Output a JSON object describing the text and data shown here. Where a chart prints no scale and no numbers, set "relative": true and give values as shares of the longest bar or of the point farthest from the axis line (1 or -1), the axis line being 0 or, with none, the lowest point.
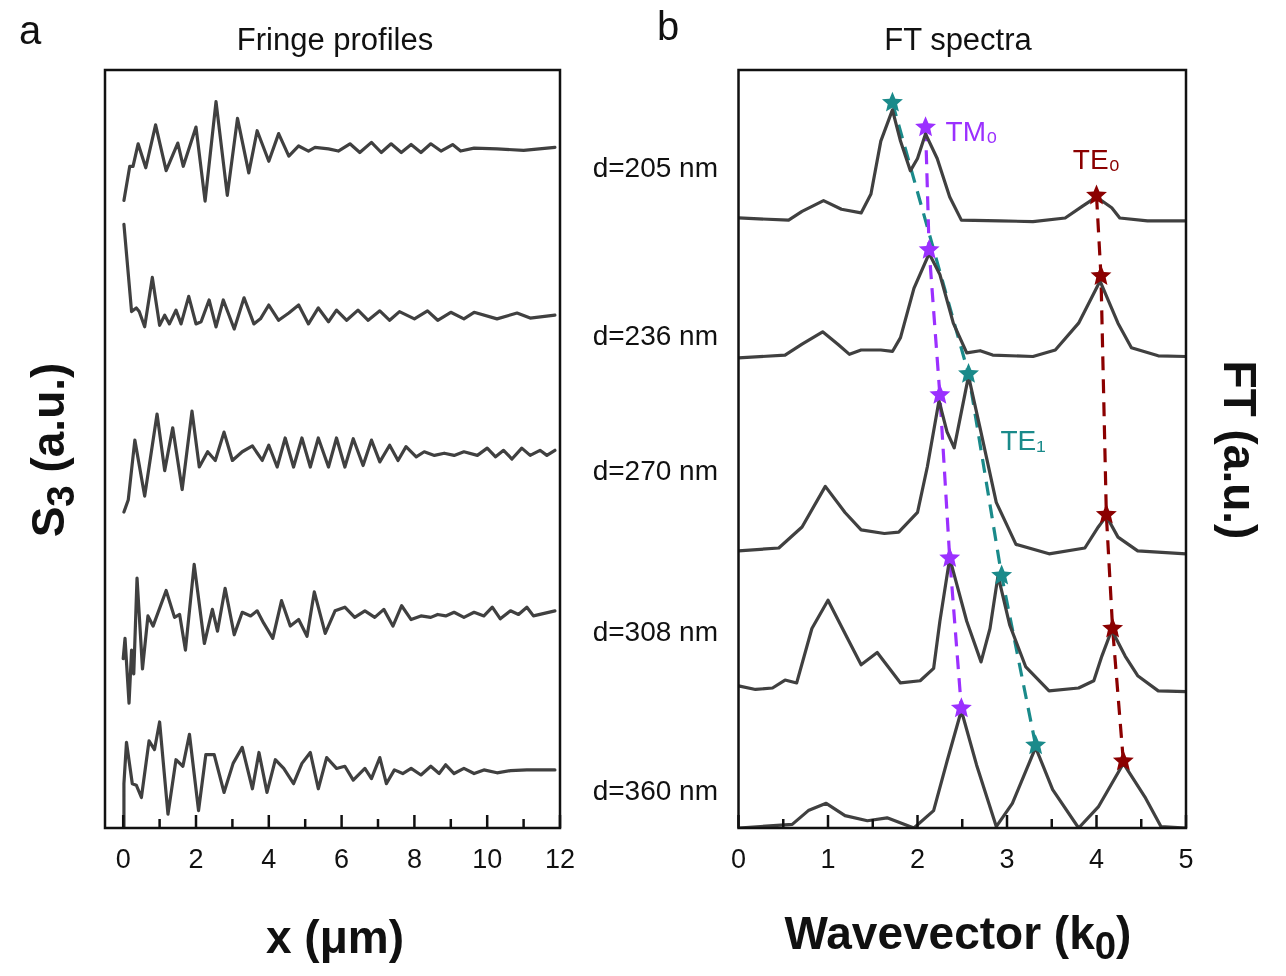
{
  "chart_data": [
    {
      "type": "line",
      "title": "Fringe profiles",
      "xlabel": "x (μm)",
      "ylabel": "S$_{3}$ (a.u.)",
      "annotations": [
        "a"
      ],
      "relative": true,
      "marker": "none",
      "line_style": "solid",
      "xlim": [
        -0.5,
        12
      ],
      "xticks": [
        0,
        {
          "value": 1,
          "label": null
        },
        2,
        {
          "value": 3,
          "label": null
        },
        4,
        {
          "value": 5,
          "label": null
        },
        6,
        {
          "value": 7,
          "label": null
        },
        8,
        {
          "value": 9,
          "label": null
        },
        10,
        {
          "value": 11,
          "label": null
        },
        12
      ],
      "series": [
        {
          "name": "d=205 nm",
          "color": "#404040",
          "x": [
            0.02,
            0.18,
            0.27,
            0.41,
            0.62,
            0.89,
            1.18,
            1.5,
            1.65,
            2.0,
            2.25,
            2.55,
            2.86,
            3.14,
            3.45,
            3.68,
            4.0,
            4.27,
            4.55,
            4.82,
            5.09,
            5.27,
            5.64,
            5.91,
            6.23,
            6.5,
            6.82,
            7.09,
            7.36,
            7.64,
            7.91,
            8.18,
            8.45,
            8.73,
            9.05,
            9.27,
            9.64,
            10.27,
            11.0,
            11.86
          ],
          "values": [
            0.864,
            0.911,
            0.911,
            0.942,
            0.909,
            0.968,
            0.905,
            0.943,
            0.911,
            0.965,
            0.863,
            1.0,
            0.871,
            0.977,
            0.902,
            0.96,
            0.918,
            0.956,
            0.925,
            0.939,
            0.932,
            0.937,
            0.935,
            0.932,
            0.942,
            0.93,
            0.944,
            0.93,
            0.942,
            0.93,
            0.941,
            0.93,
            0.942,
            0.932,
            0.941,
            0.932,
            0.936,
            0.935,
            0.933,
            0.937
          ]
        },
        {
          "name": "d=236 nm",
          "color": "#404040",
          "x": [
            0.02,
            0.23,
            0.36,
            0.44,
            0.59,
            0.8,
            1.0,
            1.14,
            1.27,
            1.45,
            1.59,
            1.8,
            2.0,
            2.14,
            2.36,
            2.55,
            2.75,
            3.05,
            3.32,
            3.59,
            3.77,
            4.0,
            4.27,
            4.55,
            4.82,
            5.09,
            5.36,
            5.64,
            5.86,
            6.14,
            6.45,
            6.73,
            7.05,
            7.32,
            7.59,
            8.0,
            8.36,
            8.64,
            9.0,
            9.36,
            9.64,
            10.27,
            10.82,
            11.18,
            11.86
          ],
          "values": [
            0.831,
            0.711,
            0.716,
            0.711,
            0.69,
            0.758,
            0.692,
            0.706,
            0.694,
            0.713,
            0.694,
            0.732,
            0.694,
            0.697,
            0.727,
            0.69,
            0.727,
            0.687,
            0.73,
            0.694,
            0.701,
            0.72,
            0.699,
            0.709,
            0.72,
            0.694,
            0.716,
            0.697,
            0.713,
            0.699,
            0.713,
            0.699,
            0.712,
            0.699,
            0.711,
            0.701,
            0.712,
            0.699,
            0.71,
            0.701,
            0.71,
            0.701,
            0.709,
            0.702,
            0.706
          ]
        },
        {
          "name": "d=270 nm",
          "color": "#404040",
          "x": [
            0.02,
            0.14,
            0.32,
            0.59,
            0.93,
            1.14,
            1.36,
            1.62,
            1.89,
            2.09,
            2.32,
            2.53,
            2.77,
            3.0,
            3.27,
            3.55,
            3.82,
            4.0,
            4.23,
            4.45,
            4.68,
            4.91,
            5.14,
            5.36,
            5.64,
            5.86,
            6.09,
            6.32,
            6.59,
            6.82,
            7.05,
            7.32,
            7.55,
            7.77,
            8.05,
            8.27,
            8.55,
            8.82,
            9.09,
            9.36,
            9.73,
            10.0,
            10.23,
            10.45,
            10.68,
            10.95,
            11.18,
            11.45,
            11.64,
            11.86
          ],
          "values": [
            0.435,
            0.452,
            0.534,
            0.457,
            0.57,
            0.492,
            0.551,
            0.466,
            0.574,
            0.497,
            0.518,
            0.506,
            0.545,
            0.506,
            0.518,
            0.526,
            0.506,
            0.527,
            0.497,
            0.537,
            0.497,
            0.537,
            0.497,
            0.537,
            0.497,
            0.537,
            0.497,
            0.536,
            0.499,
            0.534,
            0.504,
            0.527,
            0.506,
            0.525,
            0.511,
            0.518,
            0.513,
            0.516,
            0.513,
            0.518,
            0.513,
            0.523,
            0.511,
            0.52,
            0.508,
            0.523,
            0.513,
            0.52,
            0.513,
            0.52
          ]
        },
        {
          "name": "d=308 nm",
          "color": "#404040",
          "x": [
            0.0,
            0.05,
            0.16,
            0.23,
            0.29,
            0.38,
            0.53,
            0.68,
            0.82,
            1.18,
            1.41,
            1.55,
            1.71,
            1.95,
            2.23,
            2.45,
            2.59,
            2.8,
            3.05,
            3.27,
            3.5,
            3.68,
            3.86,
            4.11,
            4.35,
            4.59,
            4.82,
            5.05,
            5.25,
            5.55,
            5.82,
            6.09,
            6.36,
            6.64,
            6.91,
            7.16,
            7.41,
            7.65,
            7.91,
            8.18,
            8.45,
            8.64,
            8.86,
            9.09,
            9.36,
            9.64,
            9.91,
            10.14,
            10.36,
            10.64,
            10.86,
            11.09,
            11.27,
            11.86
          ],
          "values": [
            0.233,
            0.261,
            0.172,
            0.245,
            0.212,
            0.344,
            0.219,
            0.292,
            0.278,
            0.327,
            0.29,
            0.294,
            0.245,
            0.363,
            0.254,
            0.301,
            0.271,
            0.33,
            0.266,
            0.297,
            0.292,
            0.299,
            0.282,
            0.261,
            0.313,
            0.278,
            0.287,
            0.264,
            0.325,
            0.268,
            0.299,
            0.304,
            0.29,
            0.299,
            0.29,
            0.301,
            0.278,
            0.306,
            0.287,
            0.292,
            0.29,
            0.294,
            0.292,
            0.297,
            0.29,
            0.297,
            0.292,
            0.304,
            0.288,
            0.299,
            0.294,
            0.304,
            0.292,
            0.299
          ]
        },
        {
          "name": "d=360 nm",
          "color": "#404040",
          "x": [
            0.0,
            0.02,
            0.09,
            0.25,
            0.36,
            0.5,
            0.71,
            0.86,
            1.0,
            1.23,
            1.45,
            1.64,
            1.82,
            2.07,
            2.27,
            2.5,
            2.77,
            3.02,
            3.27,
            3.55,
            3.73,
            3.95,
            4.18,
            4.41,
            4.68,
            4.91,
            5.14,
            5.36,
            5.59,
            5.86,
            6.09,
            6.32,
            6.64,
            6.82,
            7.05,
            7.23,
            7.45,
            7.68,
            7.91,
            8.18,
            8.45,
            8.68,
            8.86,
            9.09,
            9.36,
            9.64,
            9.91,
            10.27,
            10.64,
            11.09,
            11.86
          ],
          "values": [
            0.0,
            0.061,
            0.118,
            0.061,
            0.059,
            0.042,
            0.12,
            0.108,
            0.146,
            0.019,
            0.094,
            0.085,
            0.129,
            0.024,
            0.101,
            0.101,
            0.049,
            0.089,
            0.111,
            0.054,
            0.104,
            0.049,
            0.094,
            0.082,
            0.061,
            0.089,
            0.104,
            0.054,
            0.097,
            0.082,
            0.085,
            0.066,
            0.082,
            0.068,
            0.097,
            0.061,
            0.08,
            0.075,
            0.082,
            0.073,
            0.085,
            0.075,
            0.087,
            0.075,
            0.082,
            0.075,
            0.08,
            0.076,
            0.079,
            0.08,
            0.08
          ]
        }
      ]
    },
    {
      "type": "line",
      "title": "FT spectra",
      "xlabel": "Wavevector (k$_{0}$)",
      "ylabel": "FT (a.u.)",
      "annotations": [
        "b"
      ],
      "relative": true,
      "marker": "none",
      "line_style": "solid",
      "xlim": [
        0,
        5
      ],
      "xticks": [
        0,
        {
          "value": 0.5,
          "label": null
        },
        1,
        {
          "value": 1.5,
          "label": null
        },
        2,
        {
          "value": 2.5,
          "label": null
        },
        3,
        {
          "value": 3.5,
          "label": null
        },
        4,
        {
          "value": 4.5,
          "label": null
        },
        5
      ],
      "series": [
        {
          "color": "#404040",
          "x": [
            0,
            0.56,
            0.71,
            0.95,
            1.15,
            1.37,
            1.48,
            1.59,
            1.72,
            1.81,
            1.92,
            2.0,
            2.09,
            2.22,
            2.36,
            2.49,
            2.92,
            3.29,
            3.65,
            3.84,
            4.0,
            4.17,
            4.26,
            4.57,
            5.0
          ],
          "values": [
            0.841,
            0.838,
            0.85,
            0.865,
            0.853,
            0.848,
            0.874,
            0.947,
            0.99,
            0.947,
            0.906,
            0.923,
            0.957,
            0.923,
            0.87,
            0.838,
            0.837,
            0.836,
            0.841,
            0.857,
            0.87,
            0.855,
            0.841,
            0.837,
            0.837
          ]
        },
        {
          "color": "#404040",
          "x": [
            0,
            0.52,
            0.71,
            0.94,
            1.11,
            1.24,
            1.37,
            1.59,
            1.72,
            1.81,
            1.96,
            2.13,
            2.25,
            2.4,
            2.55,
            2.7,
            2.84,
            3.29,
            3.54,
            3.8,
            4.04,
            4.24,
            4.39,
            4.69,
            5.0
          ],
          "values": [
            0.648,
            0.652,
            0.667,
            0.684,
            0.667,
            0.653,
            0.659,
            0.659,
            0.657,
            0.676,
            0.744,
            0.792,
            0.763,
            0.696,
            0.655,
            0.658,
            0.652,
            0.65,
            0.659,
            0.696,
            0.754,
            0.696,
            0.662,
            0.651,
            0.65
          ]
        },
        {
          "color": "#404040",
          "x": [
            0,
            0.45,
            0.71,
            0.97,
            1.19,
            1.37,
            1.63,
            1.79,
            2.0,
            2.11,
            2.24,
            2.33,
            2.41,
            2.57,
            2.7,
            2.88,
            3.1,
            3.47,
            3.87,
            4.02,
            4.11,
            4.24,
            4.46,
            5.0
          ],
          "values": [
            0.382,
            0.386,
            0.415,
            0.471,
            0.435,
            0.411,
            0.406,
            0.408,
            0.435,
            0.498,
            0.589,
            0.546,
            0.524,
            0.623,
            0.551,
            0.449,
            0.391,
            0.378,
            0.386,
            0.415,
            0.43,
            0.401,
            0.382,
            0.378
          ]
        },
        {
          "color": "#404040",
          "x": [
            0,
            0.19,
            0.38,
            0.52,
            0.65,
            0.82,
            1.0,
            1.22,
            1.37,
            1.55,
            1.81,
            2.03,
            2.18,
            2.25,
            2.36,
            2.55,
            2.71,
            2.81,
            2.9,
            3.03,
            3.21,
            3.47,
            3.8,
            3.97,
            4.06,
            4.17,
            4.32,
            4.46,
            4.69,
            5.0
          ],
          "values": [
            0.196,
            0.191,
            0.193,
            0.204,
            0.2,
            0.275,
            0.314,
            0.261,
            0.225,
            0.242,
            0.2,
            0.203,
            0.22,
            0.285,
            0.372,
            0.285,
            0.229,
            0.275,
            0.348,
            0.28,
            0.222,
            0.189,
            0.193,
            0.203,
            0.237,
            0.273,
            0.237,
            0.21,
            0.189,
            0.188
          ]
        },
        {
          "color": "#404040",
          "x": [
            0,
            0.6,
            0.78,
            0.98,
            1.19,
            1.44,
            1.66,
            1.96,
            2.18,
            2.33,
            2.49,
            2.66,
            2.88,
            3.06,
            3.32,
            3.51,
            3.8,
            4.02,
            4.3,
            4.54,
            4.72,
            5.0
          ],
          "values": [
            0.0,
            0.005,
            0.024,
            0.034,
            0.017,
            0.01,
            0.014,
            0.0,
            0.024,
            0.092,
            0.162,
            0.087,
            0.002,
            0.034,
            0.111,
            0.053,
            0.0,
            0.029,
            0.089,
            0.043,
            0.002,
            0.0
          ]
        },
        {
          "name": "TM₀",
          "color": "#9b30ff",
          "marker": "star",
          "line_style": "dashed",
          "x": [
            2.09,
            2.13,
            2.25,
            2.36,
            2.49
          ],
          "values": [
            0.966,
            0.797,
            0.597,
            0.372,
            0.165
          ]
        },
        {
          "name": "TE₁",
          "color": "#1a8a8a",
          "marker": "star",
          "line_style": "dashed",
          "x": [
            1.72,
            2.57,
            2.94,
            3.32
          ],
          "values": [
            1.0,
            0.626,
            0.348,
            0.114
          ]
        },
        {
          "name": "TE₀",
          "color": "#8b0000",
          "marker": "star",
          "line_style": "dashed",
          "x": [
            4.0,
            4.05,
            4.11,
            4.18,
            4.3
          ],
          "values": [
            0.872,
            0.761,
            0.432,
            0.275,
            0.092
          ]
        }
      ]
    }
  ]
}
